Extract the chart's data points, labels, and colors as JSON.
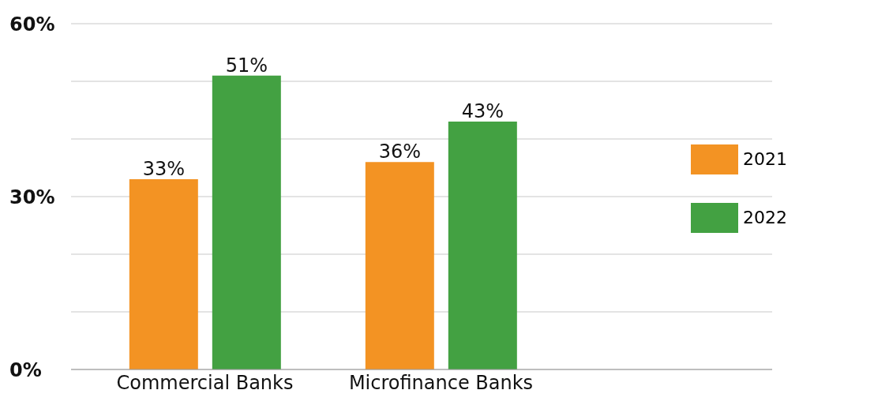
{
  "chart_data": {
    "type": "bar",
    "categories": [
      "Commercial Banks",
      "Microfinance Banks"
    ],
    "series": [
      {
        "name": "2021",
        "color": "#f39323",
        "values": [
          33,
          36
        ],
        "value_labels": [
          "33%",
          "36%"
        ]
      },
      {
        "name": "2022",
        "color": "#43a142",
        "values": [
          51,
          43
        ],
        "value_labels": [
          "51%",
          "43%"
        ]
      }
    ],
    "ylim": [
      0,
      60
    ],
    "yticks": [
      {
        "value": 0,
        "label": "0%"
      },
      {
        "value": 10,
        "label": null
      },
      {
        "value": 20,
        "label": null
      },
      {
        "value": 30,
        "label": "30%"
      },
      {
        "value": 40,
        "label": null
      },
      {
        "value": 50,
        "label": null
      },
      {
        "value": 60,
        "label": "60%"
      }
    ],
    "grid": "y",
    "legend": "right"
  }
}
